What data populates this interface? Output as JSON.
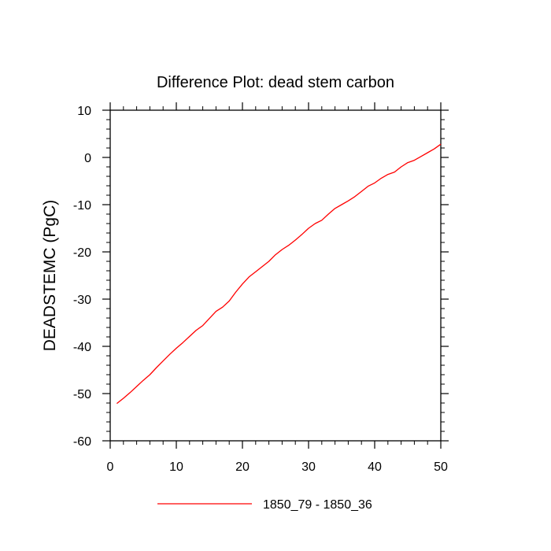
{
  "chart_data": {
    "type": "line",
    "title": "Difference Plot: dead stem carbon",
    "xlabel": "",
    "ylabel": "DEADSTEMC  (PgC)",
    "xlim": [
      0,
      50
    ],
    "ylim": [
      -60,
      10
    ],
    "x_ticks": [
      0,
      10,
      20,
      30,
      40,
      50
    ],
    "y_ticks": [
      10,
      0,
      -10,
      -20,
      -30,
      -40,
      -50,
      -60
    ],
    "grid": false,
    "legend_position": "bottom-center",
    "series": [
      {
        "name": "1850_79 - 1850_36",
        "color": "#ff0000",
        "x": [
          1,
          2,
          3,
          4,
          5,
          6,
          7,
          8,
          9,
          10,
          11,
          12,
          13,
          14,
          15,
          16,
          17,
          18,
          19,
          20,
          21,
          22,
          23,
          24,
          25,
          26,
          27,
          28,
          29,
          30,
          31,
          32,
          33,
          34,
          35,
          36,
          37,
          38,
          39,
          40,
          41,
          42,
          43,
          44,
          45,
          46,
          47,
          48,
          49,
          50
        ],
        "y": [
          -52.1,
          -51.0,
          -49.8,
          -48.5,
          -47.2,
          -46.0,
          -44.5,
          -43.1,
          -41.7,
          -40.4,
          -39.2,
          -37.9,
          -36.6,
          -35.6,
          -34.1,
          -32.6,
          -31.7,
          -30.4,
          -28.5,
          -26.8,
          -25.3,
          -24.2,
          -23.1,
          -22.0,
          -20.6,
          -19.5,
          -18.6,
          -17.5,
          -16.3,
          -15.0,
          -14.0,
          -13.3,
          -12.0,
          -10.8,
          -10.0,
          -9.2,
          -8.3,
          -7.2,
          -6.1,
          -5.4,
          -4.4,
          -3.6,
          -3.1,
          -2.0,
          -1.1,
          -0.6,
          0.2,
          1.0,
          1.8,
          2.8
        ]
      }
    ]
  }
}
